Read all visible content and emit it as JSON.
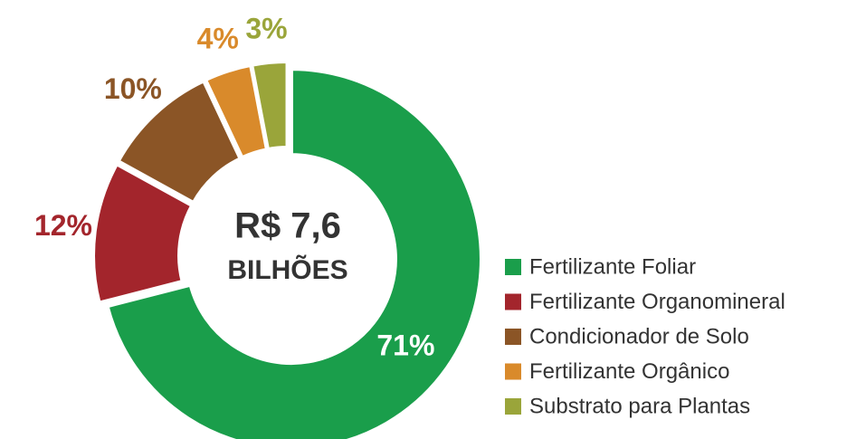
{
  "chart_data": {
    "type": "donut",
    "annotations": [
      "R$ 7,6",
      "BILHÕES"
    ],
    "categories": [
      "Fertilizante Foliar",
      "Fertilizante Organomineral",
      "Condicionador de Solo",
      "Fertilizante Orgânico",
      "Substrato para Plantas"
    ],
    "values": [
      71,
      12,
      10,
      4,
      3
    ],
    "value_labels": [
      "71%",
      "12%",
      "10%",
      "4%",
      "3%"
    ],
    "colors": [
      "#1a9e4b",
      "#a3252c",
      "#8b5526",
      "#d98a2b",
      "#9aa53a"
    ],
    "legend": "right"
  }
}
